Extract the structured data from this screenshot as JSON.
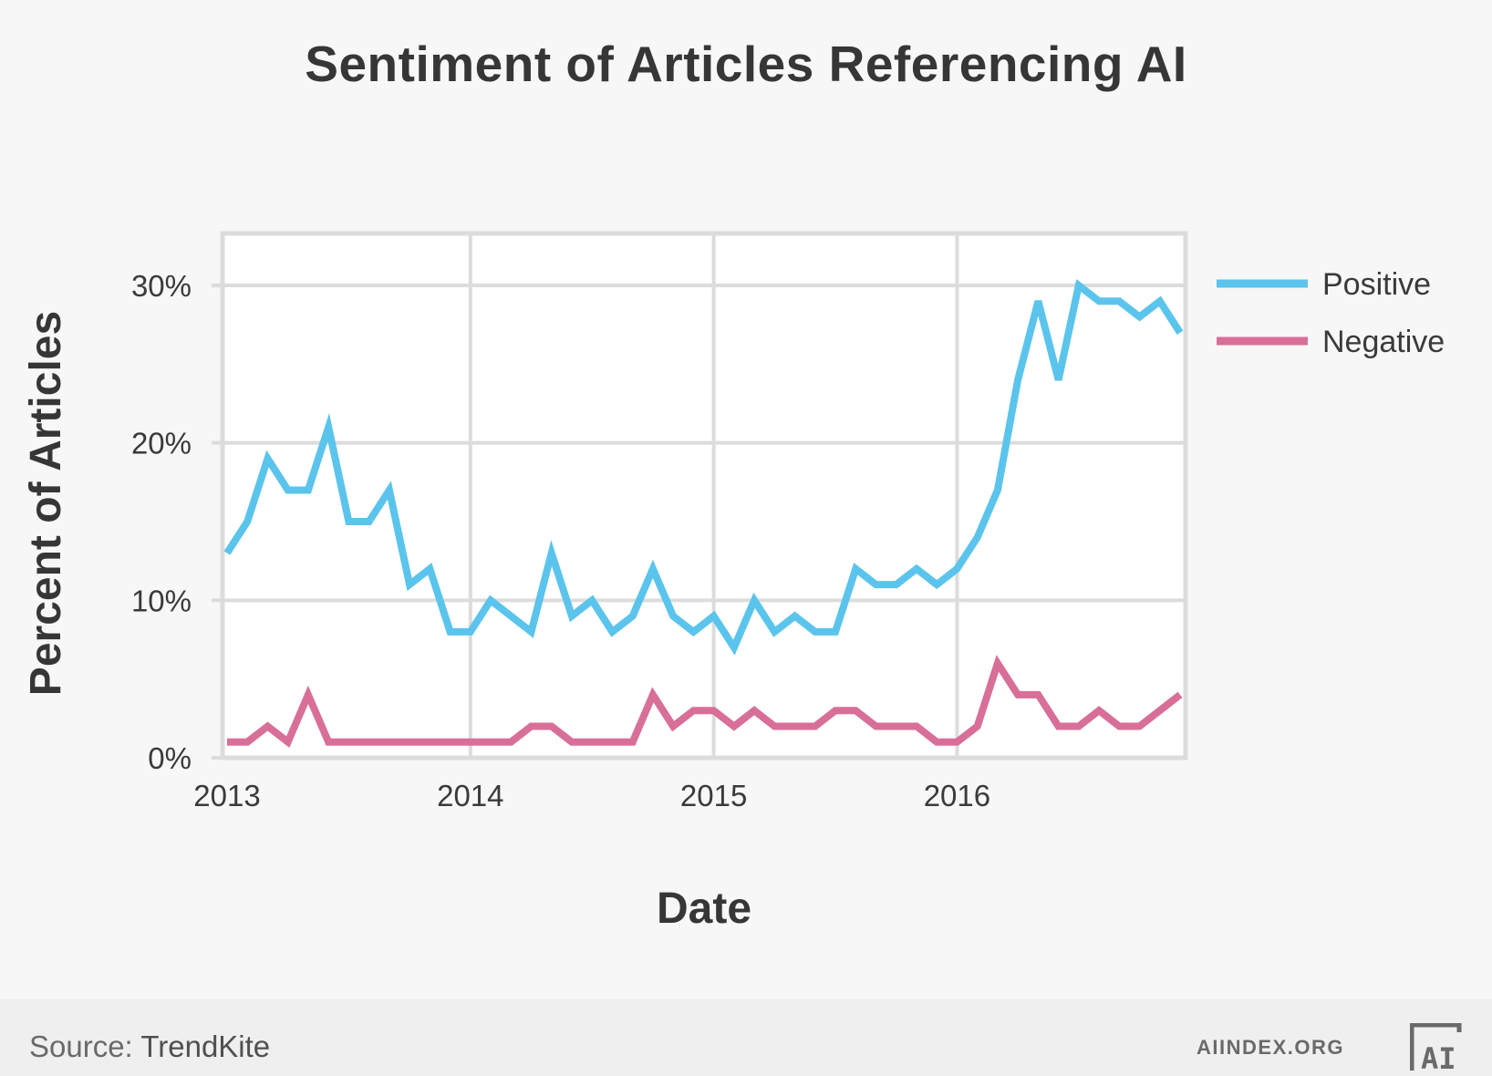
{
  "chart_data": {
    "type": "line",
    "title": "Sentiment of Articles Referencing AI",
    "xlabel": "Date",
    "ylabel": "Percent of Articles",
    "xlim": [
      "2013-01",
      "2016-12"
    ],
    "ylim": [
      0,
      30
    ],
    "y_ticks": [
      "0%",
      "10%",
      "20%",
      "30%"
    ],
    "y_tick_values": [
      0,
      10,
      20,
      30
    ],
    "x_ticks": [
      "2013",
      "2014",
      "2015",
      "2016"
    ],
    "x_tick_values": [
      "2013-01",
      "2014-01",
      "2015-01",
      "2016-01"
    ],
    "grid": true,
    "legend_position": "right",
    "x": [
      "2013-01",
      "2013-02",
      "2013-03",
      "2013-04",
      "2013-05",
      "2013-06",
      "2013-07",
      "2013-08",
      "2013-09",
      "2013-10",
      "2013-11",
      "2013-12",
      "2014-01",
      "2014-02",
      "2014-03",
      "2014-04",
      "2014-05",
      "2014-06",
      "2014-07",
      "2014-08",
      "2014-09",
      "2014-10",
      "2014-11",
      "2014-12",
      "2015-01",
      "2015-02",
      "2015-03",
      "2015-04",
      "2015-05",
      "2015-06",
      "2015-07",
      "2015-08",
      "2015-09",
      "2015-10",
      "2015-11",
      "2015-12",
      "2016-01",
      "2016-02",
      "2016-03",
      "2016-04",
      "2016-05",
      "2016-06",
      "2016-07",
      "2016-08",
      "2016-09",
      "2016-10",
      "2016-11",
      "2016-12"
    ],
    "series": [
      {
        "name": "Positive",
        "color": "#5bc4ec",
        "values": [
          13,
          15,
          19,
          17,
          17,
          21,
          15,
          15,
          17,
          11,
          12,
          8,
          8,
          10,
          9,
          8,
          13,
          9,
          10,
          8,
          9,
          12,
          9,
          8,
          9,
          7,
          10,
          8,
          9,
          8,
          8,
          12,
          11,
          11,
          12,
          11,
          12,
          14,
          17,
          24,
          29,
          24,
          30,
          29,
          29,
          28,
          29,
          27
        ]
      },
      {
        "name": "Negative",
        "color": "#d86f98",
        "values": [
          1,
          1,
          2,
          1,
          4,
          1,
          1,
          1,
          1,
          1,
          1,
          1,
          1,
          1,
          1,
          2,
          2,
          1,
          1,
          1,
          1,
          4,
          2,
          3,
          3,
          2,
          3,
          2,
          2,
          2,
          3,
          3,
          2,
          2,
          2,
          1,
          1,
          2,
          6,
          4,
          4,
          2,
          2,
          3,
          2,
          2,
          3,
          4
        ]
      }
    ]
  },
  "footer": {
    "source_label": "Source:",
    "source_name": "TrendKite",
    "site": "AIINDEX.ORG",
    "logo_text": "AI"
  }
}
